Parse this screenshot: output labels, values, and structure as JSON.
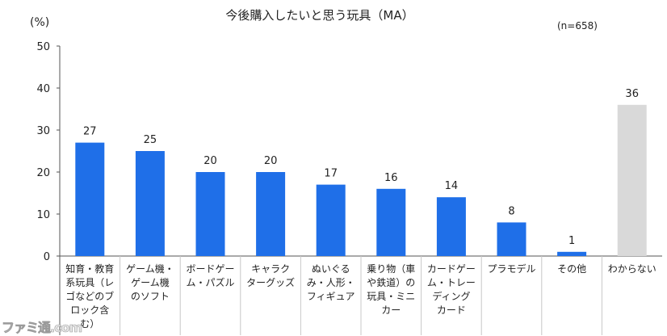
{
  "watermark": "ファミ通.com",
  "chart_data": {
    "type": "bar",
    "title": "今後購入したいと思う玩具（MA）",
    "unit_label": "(%)",
    "sample_note": "(n=658)",
    "ylim": [
      0,
      50
    ],
    "yticks": [
      0,
      10,
      20,
      30,
      40,
      50
    ],
    "grid": false,
    "categories": [
      [
        "知育・教育",
        "系玩具（レ",
        "ゴなどのブ",
        "ロック含",
        "む）"
      ],
      [
        "ゲーム機・",
        "ゲーム機",
        "のソフト"
      ],
      [
        "ボードゲー",
        "ム・パズル"
      ],
      [
        "キャラク",
        "ターグッズ"
      ],
      [
        "ぬいぐる",
        "み・人形・",
        "フィギュア"
      ],
      [
        "乗り物（車",
        "や鉄道）の",
        "玩具・ミニ",
        "カー"
      ],
      [
        "カードゲー",
        "ム・トレー",
        "ディング",
        "カード"
      ],
      [
        "プラモデル"
      ],
      [
        "その他"
      ],
      [
        "わからない"
      ]
    ],
    "values": [
      27,
      25,
      20,
      20,
      17,
      16,
      14,
      8,
      1,
      36
    ],
    "colors": {
      "bar": "#1f6fe8",
      "bar_last": "#d9d9d9",
      "axis": "#555555",
      "divider": "#c8c8c8"
    }
  }
}
